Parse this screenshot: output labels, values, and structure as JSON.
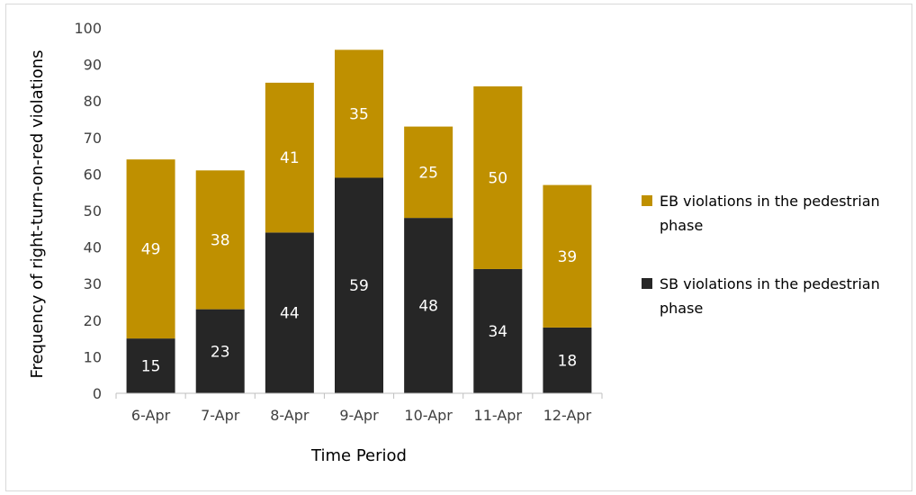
{
  "chart_data": {
    "type": "bar",
    "stacked": true,
    "title": "",
    "xlabel": "Time Period",
    "ylabel": "Frequency of right-turn-on-red violations",
    "ylim": [
      0,
      100
    ],
    "ytick_step": 10,
    "grid": false,
    "legend_position": "right",
    "categories": [
      "6-Apr",
      "7-Apr",
      "8-Apr",
      "9-Apr",
      "10-Apr",
      "11-Apr",
      "12-Apr"
    ],
    "series": [
      {
        "name": "SB violations in the pedestrian phase",
        "legend_lines": [
          "SB violations in the pedestrian",
          "phase"
        ],
        "color": "#262626",
        "values": [
          15,
          23,
          44,
          59,
          48,
          34,
          18
        ]
      },
      {
        "name": "EB violations in the pedestrian phase",
        "legend_lines": [
          "EB violations in the pedestrian",
          "phase"
        ],
        "color": "#bf9000",
        "values": [
          49,
          38,
          41,
          35,
          25,
          50,
          39
        ]
      }
    ]
  }
}
